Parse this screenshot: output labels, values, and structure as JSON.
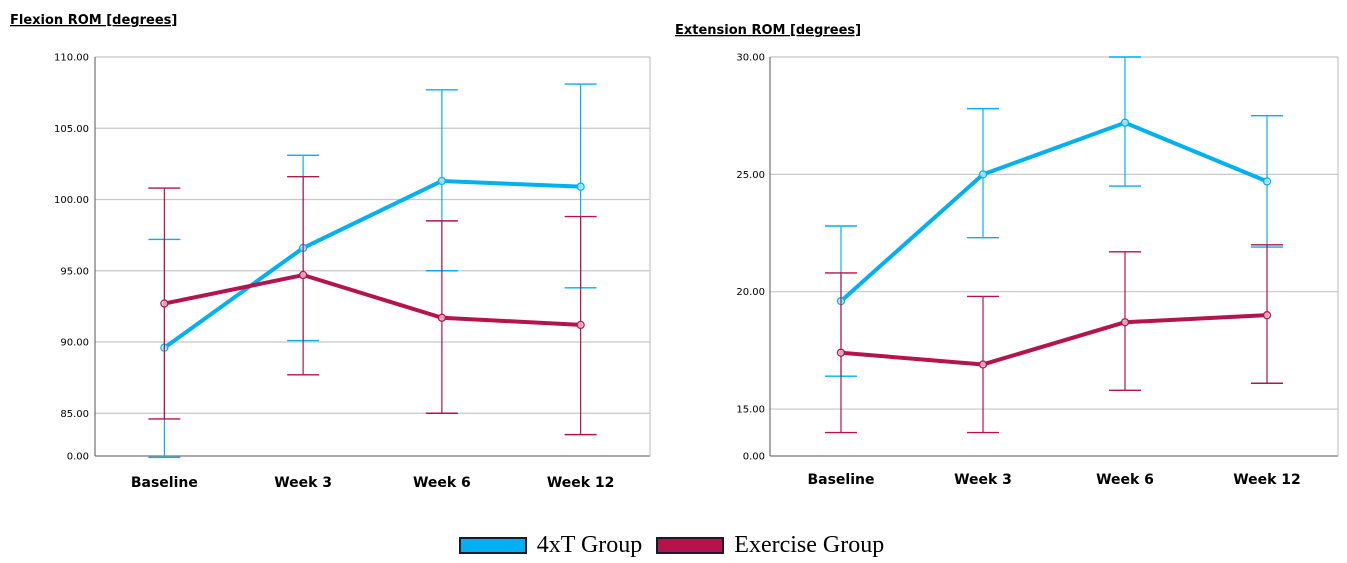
{
  "chart_data": [
    {
      "type": "line",
      "title": "Flexion ROM [degrees]",
      "categories": [
        "Baseline",
        "Week 3",
        "Week 6",
        "Week 12"
      ],
      "y_ticks": [
        "110.00",
        "105.00",
        "100.00",
        "95.00",
        "90.00",
        "85.00",
        "0.00"
      ],
      "y_tick_values": [
        110,
        105,
        100,
        95,
        90,
        85,
        82
      ],
      "ylim": [
        82,
        110
      ],
      "axis_break": "broken y-axis: bottom tick labelled 0.00",
      "grid": true,
      "series": [
        {
          "group": 0,
          "values": [
            89.6,
            96.6,
            101.3,
            100.9
          ],
          "lower": [
            81.9,
            90.1,
            95.0,
            93.8
          ],
          "upper": [
            97.2,
            103.1,
            107.7,
            108.1
          ]
        },
        {
          "group": 1,
          "values": [
            92.7,
            94.7,
            91.7,
            91.2
          ],
          "lower": [
            84.6,
            87.7,
            85.0,
            83.5
          ],
          "upper": [
            100.8,
            101.6,
            98.5,
            98.8
          ]
        }
      ]
    },
    {
      "type": "line",
      "title": "Extension ROM [degrees]",
      "categories": [
        "Baseline",
        "Week 3",
        "Week 6",
        "Week 12"
      ],
      "y_ticks": [
        "30.00",
        "25.00",
        "20.00",
        "15.00",
        "0.00"
      ],
      "y_tick_values": [
        30,
        25,
        20,
        15,
        13
      ],
      "ylim": [
        13,
        30
      ],
      "axis_break": "broken y-axis: bottom tick labelled 0.00",
      "grid": true,
      "series": [
        {
          "group": 0,
          "values": [
            19.6,
            25.0,
            27.2,
            24.7
          ],
          "lower": [
            16.4,
            22.3,
            24.5,
            21.9
          ],
          "upper": [
            22.8,
            27.8,
            30.0,
            27.5
          ]
        },
        {
          "group": 1,
          "values": [
            17.4,
            16.9,
            18.7,
            19.0
          ],
          "lower": [
            14.0,
            14.0,
            15.8,
            16.1
          ],
          "upper": [
            20.8,
            19.8,
            21.7,
            22.0
          ]
        }
      ]
    }
  ],
  "legend": {
    "position": "bottom-center",
    "items": [
      {
        "label": "4xT Group",
        "color": "#00b0f0"
      },
      {
        "label": "Exercise Group",
        "color": "#b5134b"
      }
    ]
  }
}
